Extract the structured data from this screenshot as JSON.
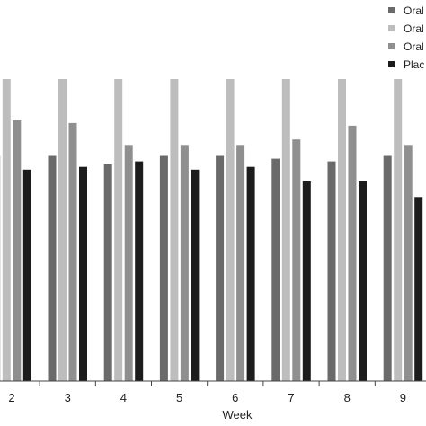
{
  "chart_data": {
    "type": "bar",
    "categories": [
      "2",
      "3",
      "4",
      "5",
      "6",
      "7",
      "8",
      "9"
    ],
    "xlabel": "Week",
    "ylabel": "",
    "grid": false,
    "legend_position": "top-right",
    "series": [
      {
        "name": "Oral",
        "color": "#6a6a6a",
        "values": [
          82,
          82,
          79,
          82,
          82,
          81,
          80,
          82
        ]
      },
      {
        "name": "Oral",
        "color": "#bdbdbd",
        "values": [
          110,
          110,
          110,
          110,
          110,
          110,
          110,
          110
        ]
      },
      {
        "name": "Oral",
        "color": "#8f8f8f",
        "values": [
          95,
          94,
          86,
          86,
          86,
          88,
          93,
          86
        ]
      },
      {
        "name": "Plac",
        "color": "#1c1c1c",
        "values": [
          77,
          78,
          80,
          77,
          78,
          73,
          73,
          67
        ]
      }
    ]
  }
}
